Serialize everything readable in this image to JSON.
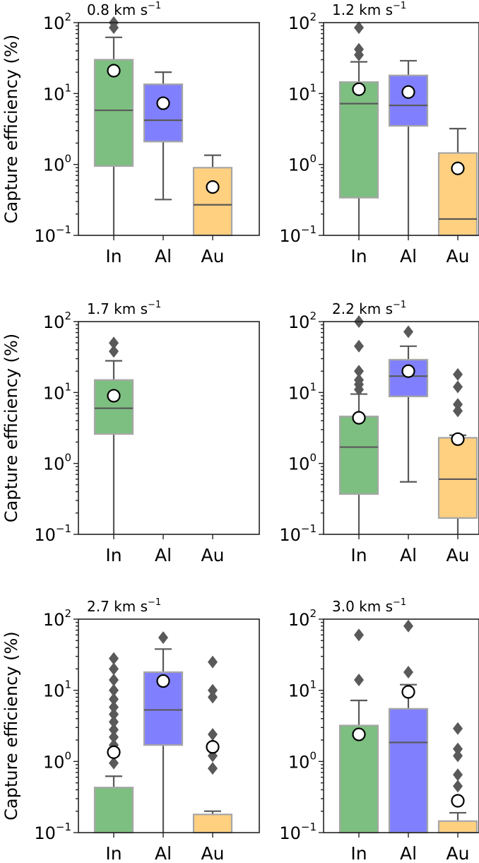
{
  "chart_data": [
    {
      "type": "box",
      "title": "0.8 km s",
      "title_sup": "−1",
      "ylabel": "Capture efficiency (%)",
      "yscale": "log",
      "ylim": [
        0.1,
        100
      ],
      "categories": [
        "In",
        "Al",
        "Au"
      ],
      "colors": [
        "#7dbf80",
        "#8080ff",
        "#ffd080"
      ],
      "boxes": [
        {
          "category": "In",
          "whislo": 0.1,
          "q1": 0.95,
          "med": 5.8,
          "q3": 30,
          "whishi": 62,
          "mean": 21,
          "fliers": [
            85,
            100
          ]
        },
        {
          "category": "Al",
          "whislo": 0.32,
          "q1": 2.1,
          "med": 4.2,
          "q3": 13.5,
          "whishi": 20,
          "mean": 7.3,
          "fliers": []
        },
        {
          "category": "Au",
          "whislo": 0.1,
          "q1": 0.1,
          "med": 0.27,
          "q3": 0.9,
          "whishi": 1.35,
          "mean": 0.48,
          "fliers": []
        }
      ]
    },
    {
      "type": "box",
      "title": "1.2 km s",
      "title_sup": "−1",
      "ylabel": "",
      "yscale": "log",
      "ylim": [
        0.1,
        100
      ],
      "categories": [
        "In",
        "Al",
        "Au"
      ],
      "colors": [
        "#7dbf80",
        "#8080ff",
        "#ffd080"
      ],
      "boxes": [
        {
          "category": "In",
          "whislo": 0.1,
          "q1": 0.34,
          "med": 7.2,
          "q3": 14.5,
          "whishi": 28,
          "mean": 11.5,
          "fliers": [
            35,
            42,
            85
          ]
        },
        {
          "category": "Al",
          "whislo": 0.1,
          "q1": 3.5,
          "med": 6.8,
          "q3": 18,
          "whishi": 29,
          "mean": 10.5,
          "fliers": []
        },
        {
          "category": "Au",
          "whislo": 0.1,
          "q1": 0.1,
          "med": 0.17,
          "q3": 1.45,
          "whishi": 3.2,
          "mean": 0.88,
          "fliers": []
        }
      ]
    },
    {
      "type": "box",
      "title": "1.7 km s",
      "title_sup": "−1",
      "ylabel": "Capture efficiency (%)",
      "yscale": "log",
      "ylim": [
        0.1,
        100
      ],
      "categories": [
        "In",
        "Al",
        "Au"
      ],
      "colors": [
        "#7dbf80",
        "#8080ff",
        "#ffd080"
      ],
      "boxes": [
        {
          "category": "In",
          "whislo": 0.1,
          "q1": 2.6,
          "med": 6.0,
          "q3": 15,
          "whishi": 28,
          "mean": 9.0,
          "fliers": [
            38,
            50
          ]
        }
      ]
    },
    {
      "type": "box",
      "title": "2.2 km s",
      "title_sup": "−1",
      "ylabel": "",
      "yscale": "log",
      "ylim": [
        0.1,
        100
      ],
      "categories": [
        "In",
        "Al",
        "Au"
      ],
      "colors": [
        "#7dbf80",
        "#8080ff",
        "#ffd080"
      ],
      "boxes": [
        {
          "category": "In",
          "whislo": 0.1,
          "q1": 0.37,
          "med": 1.7,
          "q3": 4.6,
          "whishi": 9.5,
          "mean": 4.4,
          "fliers": [
            11,
            13,
            15,
            20,
            45,
            100
          ]
        },
        {
          "category": "Al",
          "whislo": 0.55,
          "q1": 8.8,
          "med": 17,
          "q3": 29,
          "whishi": 45,
          "mean": 20,
          "fliers": [
            72
          ]
        },
        {
          "category": "Au",
          "whislo": 0.1,
          "q1": 0.17,
          "med": 0.6,
          "q3": 2.3,
          "whishi": 2.5,
          "mean": 2.2,
          "fliers": [
            5.5,
            6.8,
            12,
            18
          ]
        }
      ]
    },
    {
      "type": "box",
      "title": "2.7 km s",
      "title_sup": "−1",
      "ylabel": "Capture efficiency (%)",
      "yscale": "log",
      "ylim": [
        0.1,
        100
      ],
      "categories": [
        "In",
        "Al",
        "Au"
      ],
      "colors": [
        "#7dbf80",
        "#8080ff",
        "#ffd080"
      ],
      "boxes": [
        {
          "category": "In",
          "whislo": 0.1,
          "q1": 0.1,
          "med": 0.1,
          "q3": 0.43,
          "whishi": 0.62,
          "mean": 1.35,
          "fliers": [
            0.95,
            1.3,
            1.7,
            2.2,
            2.8,
            3.6,
            4.6,
            5.8,
            7.5,
            10,
            14,
            20,
            28
          ]
        },
        {
          "category": "Al",
          "whislo": 0.1,
          "q1": 1.7,
          "med": 5.3,
          "q3": 18,
          "whishi": 38,
          "mean": 13.5,
          "fliers": [
            55
          ]
        },
        {
          "category": "Au",
          "whislo": 0.1,
          "q1": 0.1,
          "med": 0.1,
          "q3": 0.18,
          "whishi": 0.2,
          "mean": 1.6,
          "fliers": [
            0.8,
            1.2,
            1.7,
            2.4,
            8,
            10,
            25
          ]
        }
      ]
    },
    {
      "type": "box",
      "title": "3.0 km s",
      "title_sup": "−1",
      "ylabel": "",
      "yscale": "log",
      "ylim": [
        0.1,
        100
      ],
      "categories": [
        "In",
        "Al",
        "Au"
      ],
      "colors": [
        "#7dbf80",
        "#8080ff",
        "#ffd080"
      ],
      "boxes": [
        {
          "category": "In",
          "whislo": 0.1,
          "q1": 0.1,
          "med": 0.1,
          "q3": 3.2,
          "whishi": 7.2,
          "mean": 2.4,
          "fliers": [
            14,
            60
          ]
        },
        {
          "category": "Al",
          "whislo": 0.1,
          "q1": 0.1,
          "med": 1.85,
          "q3": 5.5,
          "whishi": 12,
          "mean": 9.5,
          "fliers": [
            18,
            80
          ]
        },
        {
          "category": "Au",
          "whislo": 0.1,
          "q1": 0.1,
          "med": 0.1,
          "q3": 0.145,
          "whishi": 0.19,
          "mean": 0.28,
          "fliers": [
            0.45,
            0.65,
            1.2,
            1.5,
            2.9
          ]
        }
      ]
    }
  ],
  "axis": {
    "ytick_labels": [
      {
        "base": "10",
        "exp": "−1"
      },
      {
        "base": "10",
        "exp": "0"
      },
      {
        "base": "10",
        "exp": "1"
      },
      {
        "base": "10",
        "exp": "2"
      }
    ]
  }
}
